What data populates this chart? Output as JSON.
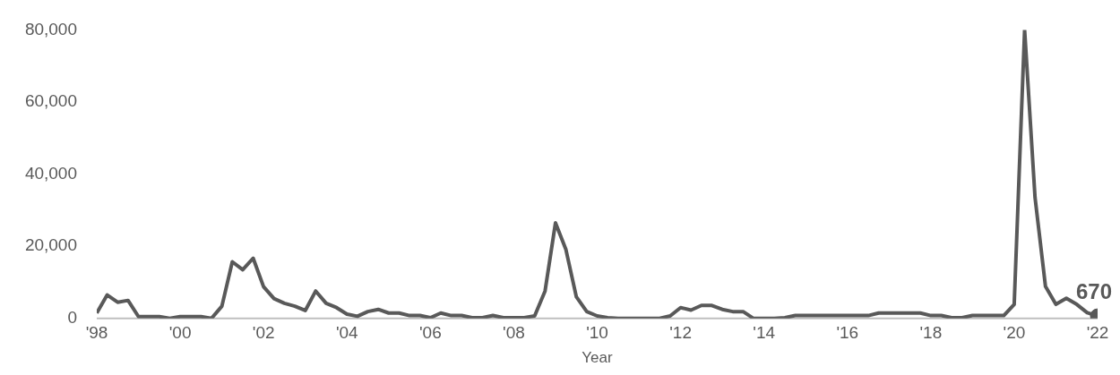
{
  "chart_data": {
    "type": "line",
    "xlabel": "Year",
    "x": [
      1998,
      1998.25,
      1998.5,
      1998.75,
      1999,
      1999.25,
      1999.5,
      1999.75,
      2000,
      2000.25,
      2000.5,
      2000.75,
      2001,
      2001.25,
      2001.5,
      2001.75,
      2002,
      2002.25,
      2002.5,
      2002.75,
      2003,
      2003.25,
      2003.5,
      2003.75,
      2004,
      2004.25,
      2004.5,
      2004.75,
      2005,
      2005.25,
      2005.5,
      2005.75,
      2006,
      2006.25,
      2006.5,
      2006.75,
      2007,
      2007.25,
      2007.5,
      2007.75,
      2008,
      2008.25,
      2008.5,
      2008.75,
      2009,
      2009.25,
      2009.5,
      2009.75,
      2010,
      2010.25,
      2010.5,
      2010.75,
      2011,
      2011.25,
      2011.5,
      2011.75,
      2012,
      2012.25,
      2012.5,
      2012.75,
      2013,
      2013.25,
      2013.5,
      2013.75,
      2014,
      2014.25,
      2014.5,
      2014.75,
      2015,
      2015.25,
      2015.5,
      2015.75,
      2016,
      2016.25,
      2016.5,
      2016.75,
      2017,
      2017.25,
      2017.5,
      2017.75,
      2018,
      2018.25,
      2018.5,
      2018.75,
      2019,
      2019.25,
      2019.5,
      2019.75,
      2020,
      2020.25,
      2020.5,
      2020.75,
      2021,
      2021.25,
      2021.5,
      2021.75,
      2022
    ],
    "series": [
      {
        "color": "#595959",
        "marker": "none",
        "values": [
          1500,
          6500,
          4500,
          5000,
          500,
          500,
          500,
          0,
          500,
          500,
          500,
          0,
          3400,
          15700,
          13500,
          16700,
          8800,
          5500,
          4200,
          3400,
          2200,
          7600,
          4200,
          3000,
          1200,
          600,
          1900,
          2500,
          1500,
          1500,
          800,
          800,
          200,
          1500,
          800,
          800,
          200,
          200,
          800,
          200,
          200,
          200,
          700,
          7600,
          26500,
          19100,
          6000,
          1900,
          700,
          200,
          0,
          0,
          0,
          0,
          0,
          700,
          3000,
          2300,
          3600,
          3600,
          2500,
          1900,
          1900,
          0,
          0,
          0,
          200,
          800,
          800,
          800,
          800,
          800,
          800,
          800,
          800,
          1500,
          1500,
          1500,
          1500,
          1500,
          800,
          800,
          200,
          200,
          800,
          800,
          800,
          800,
          3900,
          80000,
          33500,
          8900,
          3900,
          5600,
          3900,
          1600,
          670
        ]
      },
      {
        "type": "scatter",
        "color": "#595959",
        "marker": "circle",
        "x": [
          2022
        ],
        "values": [
          670
        ],
        "value_labels": [
          "670"
        ]
      }
    ],
    "xlim": [
      1998,
      2022
    ],
    "xticks": [
      {
        "value": 1998,
        "label": "'98"
      },
      {
        "value": 2000,
        "label": "'00"
      },
      {
        "value": 2002,
        "label": "'02"
      },
      {
        "value": 2004,
        "label": "'04"
      },
      {
        "value": 2006,
        "label": "'06"
      },
      {
        "value": 2008,
        "label": "'08"
      },
      {
        "value": 2010,
        "label": "'10"
      },
      {
        "value": 2012,
        "label": "'12"
      },
      {
        "value": 2014,
        "label": "'14"
      },
      {
        "value": 2016,
        "label": "'16"
      },
      {
        "value": 2018,
        "label": "'18"
      },
      {
        "value": 2020,
        "label": "'20"
      },
      {
        "value": 2022,
        "label": "'22"
      }
    ],
    "ylim": [
      0,
      80000
    ],
    "yticks": [
      {
        "value": 0,
        "label": "0"
      },
      {
        "value": 20000,
        "label": "20,000"
      },
      {
        "value": 40000,
        "label": "40,000"
      },
      {
        "value": 60000,
        "label": "60,000"
      },
      {
        "value": 80000,
        "label": "80,000"
      }
    ],
    "grid": false,
    "legend": false
  }
}
